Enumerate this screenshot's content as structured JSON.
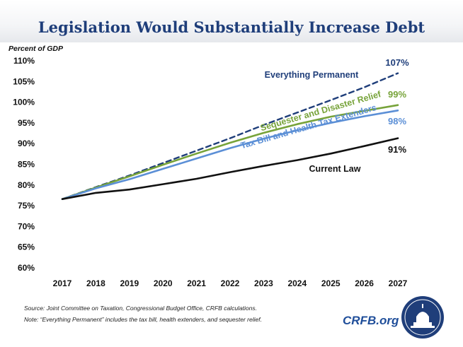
{
  "header": {
    "title": "Legislation Would Substantially Increase Debt"
  },
  "chart_data": {
    "type": "line",
    "title": "Legislation Would Substantially Increase Debt",
    "ylabel": "Percent of GDP",
    "xlabel": "",
    "categories": [
      "2017",
      "2018",
      "2019",
      "2020",
      "2021",
      "2022",
      "2023",
      "2024",
      "2025",
      "2026",
      "2027"
    ],
    "yticks": [
      "60%",
      "65%",
      "70%",
      "75%",
      "80%",
      "85%",
      "90%",
      "95%",
      "100%",
      "105%",
      "110%"
    ],
    "ylim": [
      60,
      110
    ],
    "grid": false,
    "series": [
      {
        "name": "Everything Permanent",
        "style": "dashed",
        "color": "#1f3e7a",
        "values": [
          76.6,
          79.5,
          82.3,
          85.3,
          88.3,
          91.3,
          94.5,
          97.5,
          100.5,
          103.6,
          107.0
        ],
        "end_label": "107%"
      },
      {
        "name": "Sequester and Disaster Relief",
        "style": "solid",
        "color": "#77a33a",
        "values": [
          76.6,
          79.4,
          82.1,
          84.9,
          87.6,
          90.2,
          92.6,
          94.7,
          96.5,
          97.9,
          99.3
        ],
        "end_label": "99%"
      },
      {
        "name": "Tax Bill and Health Tax Extenders",
        "style": "solid",
        "color": "#5b8fd6",
        "values": [
          76.6,
          79.2,
          81.4,
          83.9,
          86.4,
          88.9,
          91.2,
          93.2,
          95.0,
          96.6,
          98.0
        ],
        "end_label": "98%"
      },
      {
        "name": "Current Law",
        "style": "solid",
        "color": "#111111",
        "values": [
          76.6,
          78.1,
          78.9,
          80.2,
          81.5,
          83.1,
          84.6,
          86.0,
          87.6,
          89.4,
          91.3
        ],
        "end_label": "91%"
      }
    ]
  },
  "footer": {
    "source": "Source: Joint Committee on Taxation, Congressional Budget Office, CRFB calculations.",
    "note": "Note: “Everything Permanent” includes the tax bill, health extenders, and sequester relief.",
    "brand": "CRFB.org"
  },
  "colors": {
    "title": "#1f3e7a",
    "brand": "#1f4e9a",
    "seal": "#1f3e7a"
  }
}
